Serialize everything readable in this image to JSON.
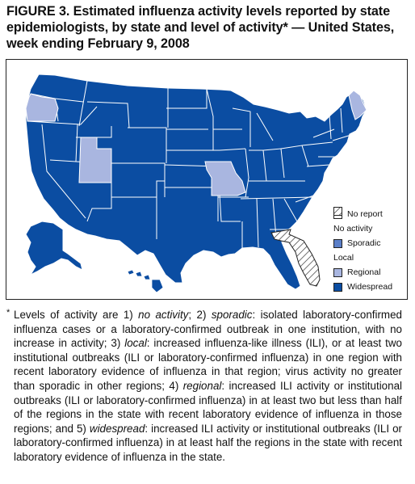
{
  "title": {
    "lead": "FIGURE 3.",
    "text": "Estimated influenza activity levels reported by state epidemiologists, by state and level of activity* — United States, week ending February 9, 2008"
  },
  "legend": {
    "items": [
      {
        "label": "No report",
        "pattern": "none",
        "color": "#ffffff"
      },
      {
        "label": "No activity",
        "pattern": "crosshatch",
        "color": "#ffffff"
      },
      {
        "label": "Sporadic",
        "pattern": "solid",
        "color": "#5b7fc8"
      },
      {
        "label": "Local",
        "pattern": "diagonal",
        "color": "#ffffff"
      },
      {
        "label": "Regional",
        "pattern": "solid",
        "color": "#a9b6e0"
      },
      {
        "label": "Widespread",
        "pattern": "solid",
        "color": "#0b4da2"
      }
    ]
  },
  "map": {
    "colors": {
      "widespread": "#0b4da2",
      "regional": "#a9b6e0",
      "local_stroke": "#222222",
      "border": "#ffffff"
    },
    "regional_states": [
      "Oregon",
      "Utah",
      "Missouri",
      "Maine"
    ],
    "local_states": [
      "Florida"
    ],
    "widespread_states": "all other states including Alaska and Hawaii"
  },
  "footnote": {
    "mark": "*",
    "p1": "Levels of activity are 1) ",
    "t1": "no activity",
    "p2": "; 2) ",
    "t2": "sporadic",
    "p3": ": isolated laboratory-confirmed influenza cases or a laboratory-confirmed outbreak in one institution, with no increase in activity; 3) ",
    "t3": "local",
    "p4": ": increased influenza-like illness (ILI), or at least two institutional outbreaks (ILI or laboratory-confirmed influenza) in one region with recent laboratory evidence of influenza in that region; virus activity no greater than sporadic in other regions; 4) ",
    "t4": "regional",
    "p5": ": increased ILI activity or institutional outbreaks (ILI or laboratory-confirmed influenza) in at least two but less than half of the regions in the state with recent laboratory evidence of influenza in those regions; and 5) ",
    "t5": "widespread",
    "p6": ": increased ILI activity or institutional outbreaks (ILI or laboratory-confirmed influenza) in at least half the regions in the state with recent laboratory evidence of influenza in the state."
  }
}
